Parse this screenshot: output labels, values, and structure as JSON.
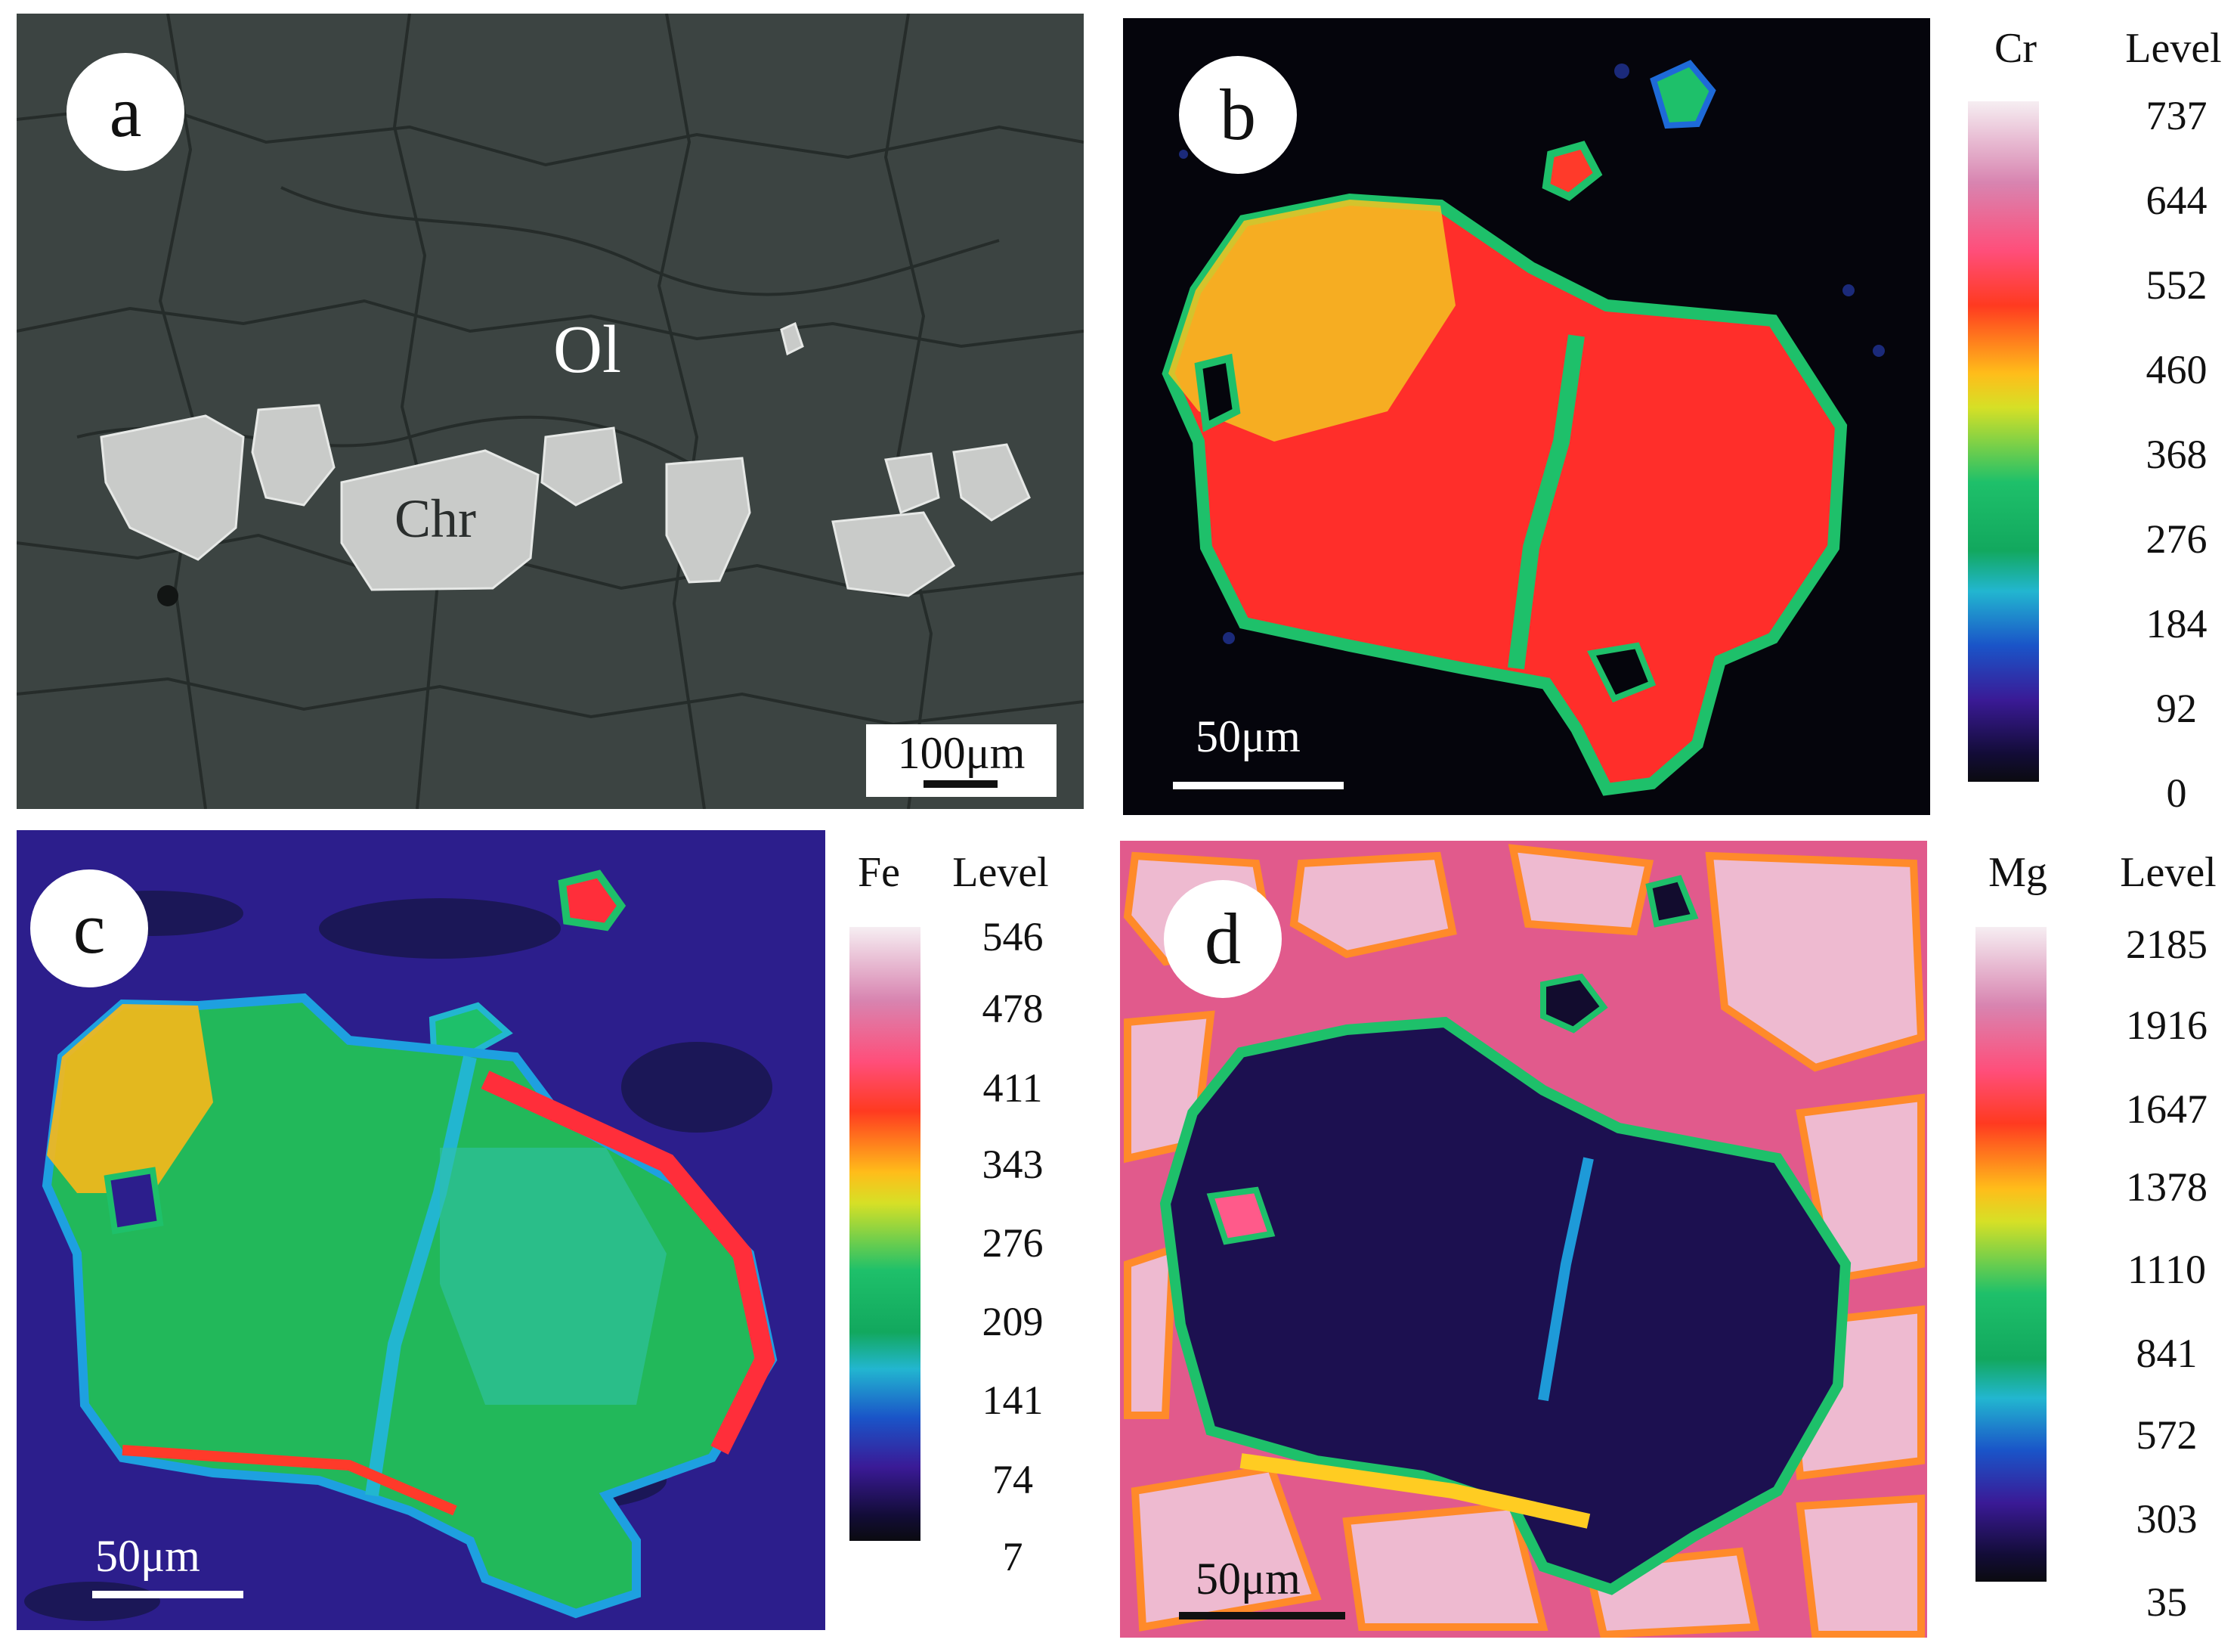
{
  "panels": {
    "a": {
      "label": "a",
      "scale": "100μm",
      "minerals": {
        "olivine": "Ol",
        "chromite": "Chr"
      }
    },
    "b": {
      "label": "b",
      "scale": "50μm"
    },
    "c": {
      "label": "c",
      "scale": "50μm"
    },
    "d": {
      "label": "d",
      "scale": "50μm"
    }
  },
  "colorbars": {
    "cr": {
      "element": "Cr",
      "level_title": "Level",
      "levels": [
        "737",
        "644",
        "552",
        "460",
        "368",
        "276",
        "184",
        "92",
        "0"
      ]
    },
    "fe": {
      "element": "Fe",
      "level_title": "Level",
      "levels": [
        "546",
        "478",
        "411",
        "343",
        "276",
        "209",
        "141",
        "74",
        "7"
      ]
    },
    "mg": {
      "element": "Mg",
      "level_title": "Level",
      "levels": [
        "2185",
        "1916",
        "1647",
        "1378",
        "1110",
        "841",
        "572",
        "303",
        "35"
      ]
    }
  },
  "colors": {
    "bse_background": "#3c4442",
    "bse_grain": "#c9cbc9",
    "cr_background": "#05050c",
    "fe_background": "#2c1e8c",
    "mg_background": "#e15a8c",
    "map_high": "#ff2a2a",
    "map_mid": "#1bbf5a",
    "map_low": "#2a1a7a"
  }
}
